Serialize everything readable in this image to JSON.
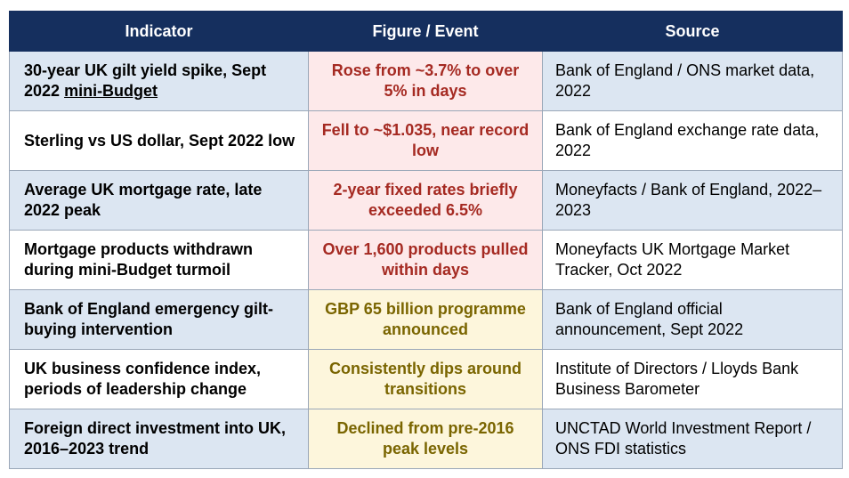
{
  "table": {
    "headers": [
      "Indicator",
      "Figure / Event",
      "Source"
    ],
    "rows": [
      [
        {
          "text": "30-year UK gilt yield spike, Sept 2022",
          "link": "mini-Budget"
        },
        "Rose from ~3.7% to over 5% in days",
        "Bank of England / ONS market data, 2022"
      ],
      [
        {
          "text": "Sterling vs US dollar, Sept 2022 low"
        },
        "Fell to ~$1.035, near record low",
        "Bank of England exchange rate data, 2022"
      ],
      [
        {
          "text": "Average UK mortgage rate, late 2022 peak"
        },
        "2-year fixed rates briefly exceeded 6.5%",
        "Moneyfacts / Bank of England, 2022–2023"
      ],
      [
        {
          "text": "Mortgage products withdrawn during mini-Budget turmoil"
        },
        "Over 1,600 products pulled within days",
        "Moneyfacts UK Mortgage Market Tracker, Oct 2022"
      ],
      [
        {
          "text": "Bank of England emergency gilt-buying intervention"
        },
        "GBP 65 billion programme announced",
        "Bank of England official announcement, Sept 2022"
      ],
      [
        {
          "text": "UK business confidence index, periods of leadership change"
        },
        "Consistently dips around transitions",
        "Institute of Directors / Lloyds Bank Business Barometer"
      ],
      [
        {
          "text": "Foreign direct investment into UK, 2016–2023 trend"
        },
        "Declined from pre-2016 peak levels",
        "UNCTAD World Investment Report / ONS FDI statistics"
      ]
    ]
  }
}
